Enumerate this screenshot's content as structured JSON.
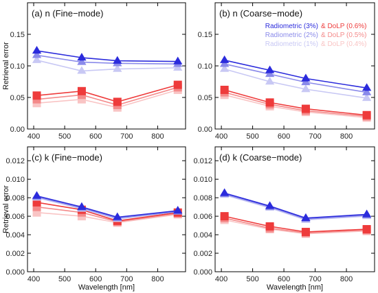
{
  "chart_data": [
    {
      "id": "a",
      "type": "line",
      "title": "(a) n (Fine−mode)",
      "xlabel": "",
      "ylabel": "Retrieval error",
      "x": [
        410,
        555,
        670,
        865
      ],
      "xlim": [
        380,
        890
      ],
      "ylim": [
        0,
        0.2
      ],
      "yticks": [
        "0.00",
        "0.05",
        "0.10",
        "0.15"
      ],
      "xticks": [
        "400",
        "500",
        "600",
        "700",
        "800"
      ],
      "series": [
        {
          "name": "Radiometric (3%)",
          "marker": "triangle",
          "color": "#2b2bdc",
          "values": [
            0.124,
            0.113,
            0.108,
            0.107
          ]
        },
        {
          "name": "Radiometric (2%)",
          "marker": "triangle",
          "color": "#8a8aea",
          "values": [
            0.117,
            0.106,
            0.104,
            0.103
          ]
        },
        {
          "name": "Radiometric (1%)",
          "marker": "triangle",
          "color": "#c8c8f4",
          "values": [
            0.109,
            0.092,
            0.095,
            0.097
          ]
        },
        {
          "name": "& DoLP (0.6%)",
          "marker": "square",
          "color": "#ee3b3b",
          "values": [
            0.053,
            0.06,
            0.043,
            0.07
          ]
        },
        {
          "name": "& DoLP (0.5%)",
          "marker": "square",
          "color": "#f48a8a",
          "values": [
            0.047,
            0.054,
            0.038,
            0.066
          ]
        },
        {
          "name": "& DoLP (0.4%)",
          "marker": "square",
          "color": "#f9c4c4",
          "values": [
            0.041,
            0.047,
            0.034,
            0.062
          ]
        }
      ]
    },
    {
      "id": "b",
      "type": "line",
      "title": "(b) n (Coarse−mode)",
      "xlabel": "",
      "ylabel": "",
      "x": [
        410,
        555,
        670,
        865
      ],
      "xlim": [
        380,
        890
      ],
      "ylim": [
        0,
        0.2
      ],
      "yticks": [
        "0.00",
        "0.05",
        "0.10",
        "0.15"
      ],
      "xticks": [
        "400",
        "500",
        "600",
        "700",
        "800"
      ],
      "legend": {
        "position": "top-right"
      },
      "series": [
        {
          "name": "Radiometric (3%)",
          "marker": "triangle",
          "color": "#2b2bdc",
          "values": [
            0.109,
            0.093,
            0.08,
            0.065
          ]
        },
        {
          "name": "Radiometric (2%)",
          "marker": "triangle",
          "color": "#8a8aea",
          "values": [
            0.103,
            0.087,
            0.074,
            0.058
          ]
        },
        {
          "name": "Radiometric (1%)",
          "marker": "triangle",
          "color": "#c8c8f4",
          "values": [
            0.095,
            0.075,
            0.063,
            0.049
          ]
        },
        {
          "name": "& DoLP (0.6%)",
          "marker": "square",
          "color": "#ee3b3b",
          "values": [
            0.062,
            0.042,
            0.032,
            0.022
          ]
        },
        {
          "name": "& DoLP (0.5%)",
          "marker": "square",
          "color": "#f48a8a",
          "values": [
            0.058,
            0.039,
            0.029,
            0.02
          ]
        },
        {
          "name": "& DoLP (0.4%)",
          "marker": "square",
          "color": "#f9c4c4",
          "values": [
            0.054,
            0.036,
            0.027,
            0.018
          ]
        }
      ]
    },
    {
      "id": "c",
      "type": "line",
      "title": "(c) k (Fine−mode)",
      "xlabel": "Wavelength [nm]",
      "ylabel": "Retrieval error",
      "x": [
        410,
        555,
        670,
        865
      ],
      "xlim": [
        380,
        890
      ],
      "ylim": [
        0,
        0.0135
      ],
      "yticks": [
        "0.000",
        "0.002",
        "0.004",
        "0.006",
        "0.008",
        "0.010",
        "0.012"
      ],
      "xticks": [
        "400",
        "500",
        "600",
        "700",
        "800"
      ],
      "series": [
        {
          "name": "Radiometric (3%)",
          "marker": "triangle",
          "color": "#2b2bdc",
          "values": [
            0.0082,
            0.007,
            0.0059,
            0.0066
          ]
        },
        {
          "name": "Radiometric (2%)",
          "marker": "triangle",
          "color": "#8a8aea",
          "values": [
            0.0081,
            0.0069,
            0.0058,
            0.0065
          ]
        },
        {
          "name": "Radiometric (1%)",
          "marker": "triangle",
          "color": "#c8c8f4",
          "values": [
            0.008,
            0.0068,
            0.0057,
            0.0065
          ]
        },
        {
          "name": "& DoLP (0.6%)",
          "marker": "square",
          "color": "#ee3b3b",
          "values": [
            0.0075,
            0.0067,
            0.0055,
            0.0064
          ]
        },
        {
          "name": "& DoLP (0.5%)",
          "marker": "square",
          "color": "#f48a8a",
          "values": [
            0.007,
            0.0064,
            0.0054,
            0.0063
          ]
        },
        {
          "name": "& DoLP (0.4%)",
          "marker": "square",
          "color": "#f9c4c4",
          "values": [
            0.0064,
            0.006,
            0.0053,
            0.0062
          ]
        }
      ]
    },
    {
      "id": "d",
      "type": "line",
      "title": "(d) k (Coarse−mode)",
      "xlabel": "Wavelength [nm]",
      "ylabel": "",
      "x": [
        410,
        555,
        670,
        865
      ],
      "xlim": [
        380,
        890
      ],
      "ylim": [
        0,
        0.0135
      ],
      "yticks": [
        "0.000",
        "0.002",
        "0.004",
        "0.006",
        "0.008",
        "0.010",
        "0.012"
      ],
      "xticks": [
        "400",
        "500",
        "600",
        "700",
        "800"
      ],
      "series": [
        {
          "name": "Radiometric (3%)",
          "marker": "triangle",
          "color": "#2b2bdc",
          "values": [
            0.0085,
            0.0071,
            0.0058,
            0.0062
          ]
        },
        {
          "name": "Radiometric (2%)",
          "marker": "triangle",
          "color": "#8a8aea",
          "values": [
            0.0084,
            0.007,
            0.0057,
            0.0061
          ]
        },
        {
          "name": "Radiometric (1%)",
          "marker": "triangle",
          "color": "#c8c8f4",
          "values": [
            0.0083,
            0.0069,
            0.0056,
            0.006
          ]
        },
        {
          "name": "& DoLP (0.6%)",
          "marker": "square",
          "color": "#ee3b3b",
          "values": [
            0.006,
            0.0049,
            0.0043,
            0.0046
          ]
        },
        {
          "name": "& DoLP (0.5%)",
          "marker": "square",
          "color": "#f48a8a",
          "values": [
            0.0058,
            0.0047,
            0.0042,
            0.0045
          ]
        },
        {
          "name": "& DoLP (0.4%)",
          "marker": "square",
          "color": "#f9c4c4",
          "values": [
            0.0056,
            0.0046,
            0.0041,
            0.0044
          ]
        }
      ]
    }
  ]
}
